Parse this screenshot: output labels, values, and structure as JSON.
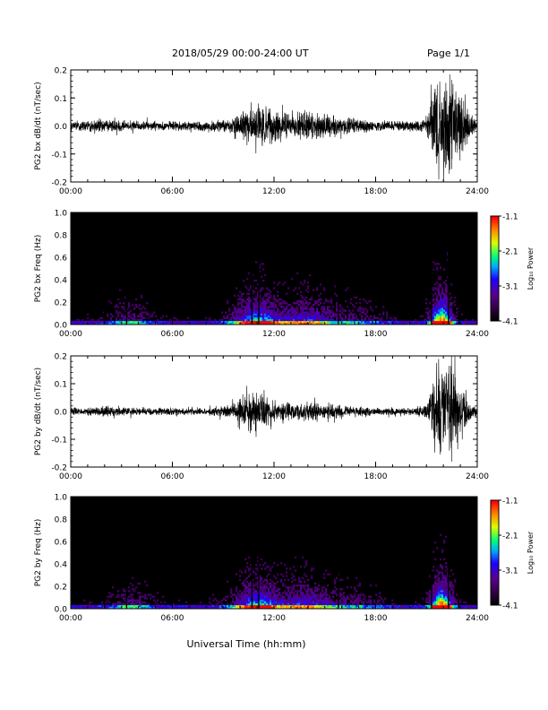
{
  "header": {
    "title": "2018/05/29  00:00-24:00 UT",
    "page": "Page 1/1"
  },
  "xaxis": {
    "label": "Universal Time (hh:mm)",
    "ticks": [
      "00:00",
      "06:00",
      "12:00",
      "18:00",
      "24:00"
    ],
    "range_hours": [
      0,
      24
    ]
  },
  "colorbar": {
    "ticks": [
      "-1.1",
      "-2.1",
      "-3.1",
      "-4.1"
    ],
    "tick_values": [
      -1.1,
      -2.1,
      -3.1,
      -4.1
    ],
    "label": "Log₁₀ Power",
    "range": [
      -4.1,
      -1.1
    ],
    "colors": [
      "#000000",
      "#5a0080",
      "#2000ff",
      "#00c0ff",
      "#00ff60",
      "#ffff00",
      "#ff8000",
      "#ff0000"
    ]
  },
  "chart_data": [
    {
      "type": "line",
      "ylabel": "PG2 bx dB/dt (nT/sec)",
      "ylim": [
        -0.2,
        0.2
      ],
      "yticks": [
        "0.2",
        "0.1",
        "0.0",
        "-0.1",
        "-0.2"
      ],
      "ytick_values": [
        0.2,
        0.1,
        0.0,
        -0.1,
        -0.2
      ],
      "envelope": {
        "hours": [
          0,
          2,
          4,
          6,
          8,
          9.5,
          10,
          10.5,
          11,
          11.5,
          12,
          12.5,
          13,
          14,
          15,
          16,
          17,
          18,
          19,
          20,
          21,
          21.3,
          21.6,
          22,
          22.5,
          23,
          23.5,
          24
        ],
        "amplitude": [
          0.02,
          0.025,
          0.02,
          0.02,
          0.02,
          0.03,
          0.05,
          0.08,
          0.11,
          0.08,
          0.06,
          0.06,
          0.05,
          0.07,
          0.05,
          0.04,
          0.03,
          0.02,
          0.02,
          0.02,
          0.03,
          0.12,
          0.2,
          0.2,
          0.2,
          0.12,
          0.06,
          0.02
        ]
      }
    },
    {
      "type": "heatmap",
      "ylabel": "PG2 bx Freq (Hz)",
      "ylim": [
        0.0,
        1.0
      ],
      "yticks": [
        "1.0",
        "0.8",
        "0.6",
        "0.4",
        "0.2",
        "0.0"
      ],
      "ytick_values": [
        1.0,
        0.8,
        0.6,
        0.4,
        0.2,
        0.0
      ],
      "zlim": [
        -4.1,
        -1.1
      ]
    },
    {
      "type": "line",
      "ylabel": "PG2 by dB/dt (nT/sec)",
      "ylim": [
        -0.2,
        0.2
      ],
      "yticks": [
        "0.2",
        "0.1",
        "0.0",
        "-0.1",
        "-0.2"
      ],
      "ytick_values": [
        0.2,
        0.1,
        0.0,
        -0.1,
        -0.2
      ],
      "envelope": {
        "hours": [
          0,
          2,
          4,
          6,
          8,
          9.5,
          10,
          10.5,
          11,
          11.5,
          12,
          12.5,
          13,
          14,
          15,
          16,
          17,
          18,
          19,
          20,
          21,
          21.3,
          21.6,
          22,
          22.5,
          23,
          23.5,
          24
        ],
        "amplitude": [
          0.015,
          0.02,
          0.015,
          0.015,
          0.015,
          0.03,
          0.05,
          0.09,
          0.08,
          0.06,
          0.04,
          0.04,
          0.035,
          0.04,
          0.03,
          0.025,
          0.02,
          0.015,
          0.015,
          0.015,
          0.03,
          0.12,
          0.2,
          0.2,
          0.2,
          0.12,
          0.05,
          0.015
        ]
      }
    },
    {
      "type": "heatmap",
      "ylabel": "PG2 by Freq (Hz)",
      "ylim": [
        0.0,
        1.0
      ],
      "yticks": [
        "1.0",
        "0.8",
        "0.6",
        "0.4",
        "0.2",
        "0.0"
      ],
      "ytick_values": [
        1.0,
        0.8,
        0.6,
        0.4,
        0.2,
        0.0
      ],
      "zlim": [
        -4.1,
        -1.1
      ]
    }
  ]
}
